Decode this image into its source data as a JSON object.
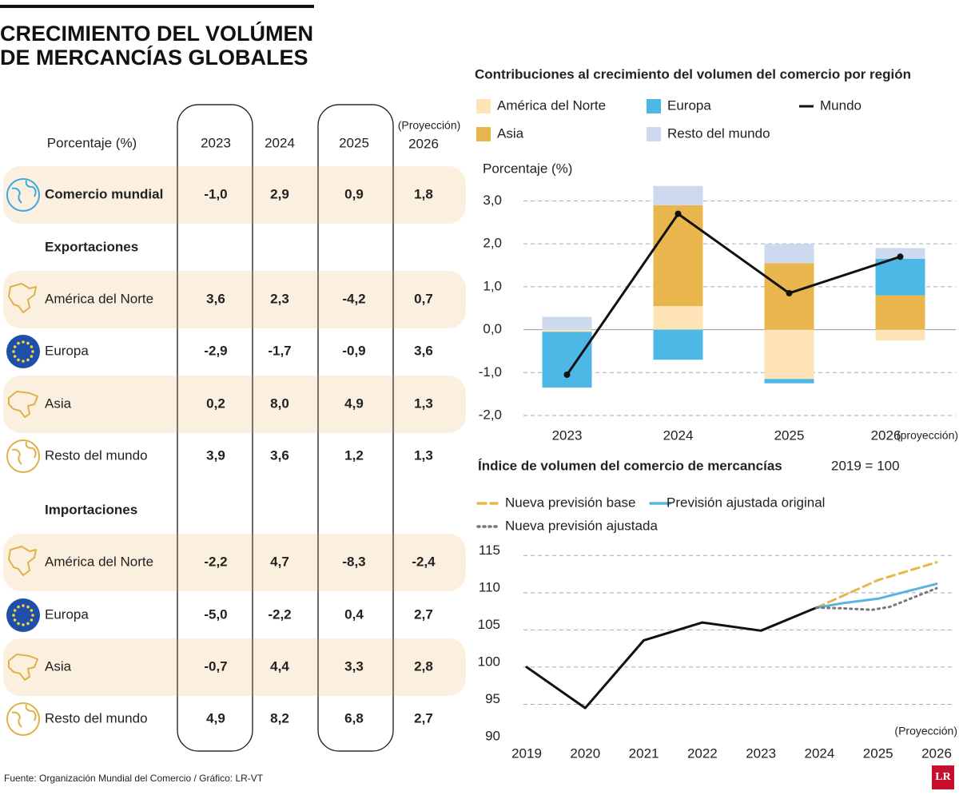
{
  "header": {
    "title_lines": [
      "CRECIMIENTO DEL VOLÚMEN",
      "DE MERCANCÍAS GLOBALES"
    ]
  },
  "table": {
    "header": "Porcentaje (%)",
    "columns": [
      "2023",
      "2024",
      "2025",
      "2026"
    ],
    "projection_note": "(Proyección)",
    "total": {
      "label": "Comercio mundial",
      "values": [
        "-1,0",
        "2,9",
        "0,9",
        "1,8"
      ]
    },
    "sections": [
      {
        "title": "Exportaciones",
        "rows": [
          {
            "label": "América del Norte",
            "values": [
              "3,6",
              "2,3",
              "-4,2",
              "0,7"
            ]
          },
          {
            "label": "Europa",
            "values": [
              "-2,9",
              "-1,7",
              "-0,9",
              "3,6"
            ]
          },
          {
            "label": "Asia",
            "values": [
              "0,2",
              "8,0",
              "4,9",
              "1,3"
            ]
          },
          {
            "label": "Resto del mundo",
            "values": [
              "3,9",
              "3,6",
              "1,2",
              "1,3"
            ]
          }
        ]
      },
      {
        "title": "Importaciones",
        "rows": [
          {
            "label": "América del Norte",
            "values": [
              "-2,2",
              "4,7",
              "-8,3",
              "-2,4"
            ]
          },
          {
            "label": "Europa",
            "values": [
              "-5,0",
              "-2,2",
              "0,4",
              "2,7"
            ]
          },
          {
            "label": "Asia",
            "values": [
              "-0,7",
              "4,4",
              "3,3",
              "2,8"
            ]
          },
          {
            "label": "Resto del mundo",
            "values": [
              "4,9",
              "8,2",
              "6,8",
              "2,7"
            ]
          }
        ]
      }
    ]
  },
  "chart_data": [
    {
      "type": "bar",
      "stacked": true,
      "title": "Contribuciones al crecimiento del volumen del comercio por región",
      "y_label": "Porcentaje (%)",
      "categories": [
        "2023",
        "2024",
        "2025",
        "2026"
      ],
      "category_note": "(proyección)",
      "series": [
        {
          "name": "América del Norte",
          "color": "#fde3b5",
          "values": [
            -0.05,
            0.55,
            -1.15,
            -0.25
          ]
        },
        {
          "name": "Asia",
          "color": "#e8b64c",
          "values": [
            0,
            2.35,
            1.55,
            0.8
          ]
        },
        {
          "name": "Europa",
          "color": "#4db8e6",
          "values": [
            -1.3,
            -0.7,
            -0.1,
            0.85
          ]
        },
        {
          "name": "Resto del mundo",
          "color": "#cdd9ee",
          "values": [
            0.3,
            0.45,
            0.45,
            0.25
          ]
        },
        {
          "name": "Mundo",
          "type": "line",
          "color": "#111111",
          "values": [
            -1.05,
            2.7,
            0.85,
            1.7
          ]
        }
      ],
      "ylim": [
        -2,
        3.4
      ],
      "yticks": [
        {
          "value": -2,
          "label": "-2,0"
        },
        {
          "value": -1,
          "label": "-1,0"
        },
        {
          "value": 0,
          "label": "0,0"
        },
        {
          "value": 1,
          "label": "1,0"
        },
        {
          "value": 2,
          "label": "2,0"
        },
        {
          "value": 3,
          "label": "3,0"
        }
      ],
      "grid": true
    },
    {
      "type": "line",
      "title": "Índice de volumen del comercio de mercancías",
      "subtitle": "2019 = 100",
      "annotation": "(Proyección)",
      "series": [
        {
          "color": "#111111",
          "style": "solid",
          "x": [
            2019,
            2020,
            2021,
            2022,
            2023,
            2023.95
          ],
          "values": [
            100,
            94.5,
            103.6,
            106,
            104.9,
            108
          ]
        },
        {
          "name": "Nueva previsión base",
          "color": "#e8b64c",
          "style": "dashed",
          "x": [
            2023.95,
            2025,
            2026
          ],
          "values": [
            108,
            111.7,
            114.1
          ]
        },
        {
          "name": "Previsión ajustada original",
          "color": "#5bb3e0",
          "style": "solid",
          "x": [
            2023.95,
            2024.4,
            2025,
            2026
          ],
          "values": [
            108,
            108.6,
            109.2,
            111.2
          ]
        },
        {
          "name": "Nueva previsión ajustada",
          "color": "#777777",
          "style": "dotted",
          "x": [
            2023.95,
            2024.4,
            2024.9,
            2025.2,
            2026
          ],
          "values": [
            108,
            107.9,
            107.7,
            108.1,
            110.6
          ]
        }
      ],
      "xlim": [
        2019,
        2026
      ],
      "xticks": [
        2019,
        2020,
        2021,
        2022,
        2023,
        2024,
        2025,
        2026
      ],
      "ylim": [
        90,
        116
      ],
      "yticks": [
        90,
        95,
        100,
        105,
        110,
        115
      ],
      "grid": true
    }
  ],
  "source": "Fuente: Organización Mundial del Comercio / Gráfico: LR-VT",
  "logo": "LR"
}
